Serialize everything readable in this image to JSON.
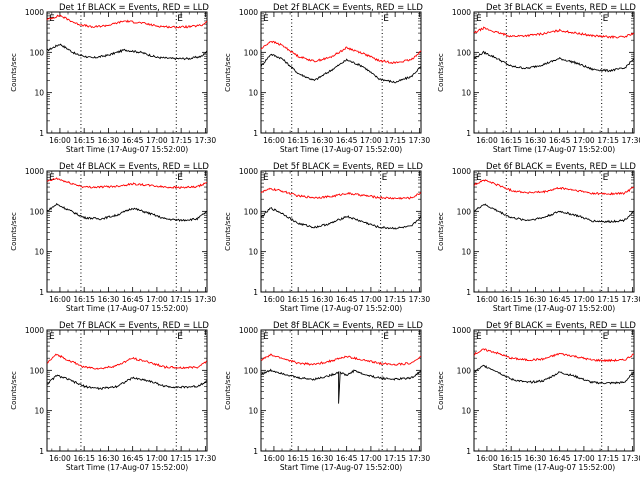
{
  "figure": {
    "ylabel": "Counts/sec",
    "xlabel": "Start Time (17-Aug-07 15:52:00)"
  },
  "chart_data": [
    {
      "type": "line",
      "title": "Det 1f BLACK = Events, RED = LLD",
      "xlabel": "Start Time (17-Aug-07 15:52:00)",
      "ylabel": "Counts/sec",
      "yscale": "log",
      "ylim": [
        1,
        1000
      ],
      "xlim": [
        "15:52",
        "17:31"
      ],
      "x_ticks": [
        "16:00",
        "16:15",
        "16:30",
        "16:45",
        "17:00",
        "17:15",
        "17:30"
      ],
      "y_ticks": [
        "1",
        "10",
        "100",
        "1000"
      ],
      "markers": [
        {
          "x": "16:13",
          "label": ""
        },
        {
          "x": "17:12",
          "label": "E"
        }
      ],
      "corner_label": "E",
      "series": [
        {
          "name": "Events",
          "color": "#000000",
          "x": [
            "15:52",
            "16:00",
            "16:10",
            "16:20",
            "16:30",
            "16:40",
            "16:50",
            "17:00",
            "17:10",
            "17:20",
            "17:28",
            "17:31"
          ],
          "y": [
            110,
            160,
            90,
            72,
            85,
            115,
            100,
            75,
            70,
            70,
            80,
            110
          ]
        },
        {
          "name": "LLD",
          "color": "#ff0000",
          "x": [
            "15:52",
            "16:00",
            "16:10",
            "16:20",
            "16:30",
            "16:40",
            "16:50",
            "17:00",
            "17:10",
            "17:20",
            "17:28",
            "17:31"
          ],
          "y": [
            650,
            820,
            520,
            420,
            470,
            600,
            540,
            450,
            420,
            430,
            470,
            600
          ]
        }
      ]
    },
    {
      "type": "line",
      "title": "Det 2f BLACK = Events, RED = LLD",
      "xlabel": "Start Time (17-Aug-07 15:52:00)",
      "ylabel": "Counts/sec",
      "yscale": "log",
      "ylim": [
        1,
        1000
      ],
      "xlim": [
        "15:52",
        "17:31"
      ],
      "x_ticks": [
        "16:00",
        "16:15",
        "16:30",
        "16:45",
        "17:00",
        "17:15",
        "17:30"
      ],
      "y_ticks": [
        "1",
        "10",
        "100",
        "1000"
      ],
      "markers": [
        {
          "x": "16:11",
          "label": ""
        },
        {
          "x": "17:07",
          "label": "E"
        }
      ],
      "corner_label": "E",
      "series": [
        {
          "name": "Events",
          "color": "#000000",
          "x": [
            "15:52",
            "15:58",
            "16:05",
            "16:15",
            "16:25",
            "16:35",
            "16:45",
            "16:55",
            "17:05",
            "17:15",
            "17:25",
            "17:31"
          ],
          "y": [
            45,
            90,
            70,
            30,
            20,
            35,
            65,
            45,
            22,
            18,
            25,
            45
          ]
        },
        {
          "name": "LLD",
          "color": "#ff0000",
          "x": [
            "15:52",
            "15:58",
            "16:05",
            "16:15",
            "16:25",
            "16:35",
            "16:45",
            "16:55",
            "17:05",
            "17:15",
            "17:25",
            "17:31"
          ],
          "y": [
            120,
            190,
            150,
            80,
            60,
            75,
            130,
            95,
            62,
            55,
            65,
            110
          ]
        }
      ]
    },
    {
      "type": "line",
      "title": "Det 3f BLACK = Events, RED = LLD",
      "xlabel": "Start Time (17-Aug-07 15:52:00)",
      "ylabel": "Counts/sec",
      "yscale": "log",
      "ylim": [
        1,
        1000
      ],
      "xlim": [
        "15:52",
        "17:31"
      ],
      "x_ticks": [
        "16:00",
        "16:15",
        "16:30",
        "16:45",
        "17:00",
        "17:15",
        "17:30"
      ],
      "y_ticks": [
        "1",
        "10",
        "100",
        "1000"
      ],
      "markers": [
        {
          "x": "16:12",
          "label": ""
        },
        {
          "x": "17:11",
          "label": "E"
        }
      ],
      "corner_label": "E",
      "series": [
        {
          "name": "Events",
          "color": "#000000",
          "x": [
            "15:52",
            "15:58",
            "16:05",
            "16:15",
            "16:25",
            "16:35",
            "16:45",
            "16:55",
            "17:05",
            "17:15",
            "17:25",
            "17:31"
          ],
          "y": [
            70,
            100,
            75,
            45,
            40,
            50,
            70,
            55,
            38,
            35,
            40,
            70
          ]
        },
        {
          "name": "LLD",
          "color": "#ff0000",
          "x": [
            "15:52",
            "15:58",
            "16:05",
            "16:15",
            "16:25",
            "16:35",
            "16:45",
            "16:55",
            "17:05",
            "17:15",
            "17:25",
            "17:31"
          ],
          "y": [
            300,
            400,
            320,
            250,
            260,
            290,
            350,
            300,
            260,
            240,
            240,
            300
          ]
        }
      ]
    },
    {
      "type": "line",
      "title": "Det 4f BLACK = Events, RED = LLD",
      "xlabel": "Start Time (17-Aug-07 15:52:00)",
      "ylabel": "Counts/sec",
      "yscale": "log",
      "ylim": [
        1,
        1000
      ],
      "xlim": [
        "15:52",
        "17:31"
      ],
      "x_ticks": [
        "16:00",
        "16:15",
        "16:30",
        "16:45",
        "17:00",
        "17:15",
        "17:30"
      ],
      "y_ticks": [
        "1",
        "10",
        "100",
        "1000"
      ],
      "markers": [
        {
          "x": "16:13",
          "label": ""
        },
        {
          "x": "17:12",
          "label": "E"
        }
      ],
      "corner_label": "E",
      "series": [
        {
          "name": "Events",
          "color": "#000000",
          "x": [
            "15:52",
            "15:58",
            "16:05",
            "16:15",
            "16:25",
            "16:35",
            "16:45",
            "16:55",
            "17:05",
            "17:15",
            "17:25",
            "17:31"
          ],
          "y": [
            100,
            150,
            110,
            70,
            65,
            80,
            120,
            90,
            65,
            60,
            65,
            100
          ]
        },
        {
          "name": "LLD",
          "color": "#ff0000",
          "x": [
            "15:52",
            "15:58",
            "16:05",
            "16:15",
            "16:25",
            "16:35",
            "16:45",
            "16:55",
            "17:05",
            "17:15",
            "17:25",
            "17:31"
          ],
          "y": [
            550,
            650,
            520,
            400,
            400,
            420,
            480,
            440,
            400,
            390,
            400,
            520
          ]
        }
      ]
    },
    {
      "type": "line",
      "title": "Det 5f BLACK = Events, RED = LLD",
      "xlabel": "Start Time (17-Aug-07 15:52:00)",
      "ylabel": "Counts/sec",
      "yscale": "log",
      "ylim": [
        1,
        1000
      ],
      "xlim": [
        "15:52",
        "17:31"
      ],
      "x_ticks": [
        "16:00",
        "16:15",
        "16:30",
        "16:45",
        "17:00",
        "17:15",
        "17:30"
      ],
      "y_ticks": [
        "1",
        "10",
        "100",
        "1000"
      ],
      "markers": [
        {
          "x": "16:11",
          "label": ""
        },
        {
          "x": "17:06",
          "label": "E"
        }
      ],
      "corner_label": "E",
      "series": [
        {
          "name": "Events",
          "color": "#000000",
          "x": [
            "15:52",
            "15:58",
            "16:05",
            "16:15",
            "16:25",
            "16:35",
            "16:45",
            "16:55",
            "17:05",
            "17:15",
            "17:25",
            "17:31"
          ],
          "y": [
            70,
            120,
            90,
            50,
            40,
            50,
            75,
            55,
            40,
            38,
            42,
            75
          ]
        },
        {
          "name": "LLD",
          "color": "#ff0000",
          "x": [
            "15:52",
            "15:58",
            "16:05",
            "16:15",
            "16:25",
            "16:35",
            "16:45",
            "16:55",
            "17:05",
            "17:15",
            "17:25",
            "17:31"
          ],
          "y": [
            300,
            360,
            320,
            240,
            220,
            230,
            280,
            250,
            220,
            210,
            215,
            290
          ]
        }
      ]
    },
    {
      "type": "line",
      "title": "Det 6f BLACK = Events, RED = LLD",
      "xlabel": "Start Time (17-Aug-07 15:52:00)",
      "ylabel": "Counts/sec",
      "yscale": "log",
      "ylim": [
        1,
        1000
      ],
      "xlim": [
        "15:52",
        "17:31"
      ],
      "x_ticks": [
        "16:00",
        "16:15",
        "16:30",
        "16:45",
        "17:00",
        "17:15",
        "17:30"
      ],
      "y_ticks": [
        "1",
        "10",
        "100",
        "1000"
      ],
      "markers": [
        {
          "x": "16:12",
          "label": ""
        },
        {
          "x": "17:11",
          "label": "E"
        }
      ],
      "corner_label": "E",
      "series": [
        {
          "name": "Events",
          "color": "#000000",
          "x": [
            "15:52",
            "15:58",
            "16:05",
            "16:15",
            "16:25",
            "16:35",
            "16:45",
            "16:55",
            "17:05",
            "17:15",
            "17:25",
            "17:31"
          ],
          "y": [
            100,
            150,
            110,
            70,
            60,
            70,
            100,
            80,
            58,
            55,
            60,
            100
          ]
        },
        {
          "name": "LLD",
          "color": "#ff0000",
          "x": [
            "15:52",
            "15:58",
            "16:05",
            "16:15",
            "16:25",
            "16:35",
            "16:45",
            "16:55",
            "17:05",
            "17:15",
            "17:25",
            "17:31"
          ],
          "y": [
            450,
            600,
            480,
            330,
            290,
            300,
            380,
            330,
            280,
            270,
            280,
            400
          ]
        }
      ]
    },
    {
      "type": "line",
      "title": "Det 7f BLACK = Events, RED = LLD",
      "xlabel": "Start Time (17-Aug-07 15:52:00)",
      "ylabel": "Counts/sec",
      "yscale": "log",
      "ylim": [
        1,
        1000
      ],
      "xlim": [
        "15:52",
        "17:31"
      ],
      "x_ticks": [
        "16:00",
        "16:15",
        "16:30",
        "16:45",
        "17:00",
        "17:15",
        "17:30"
      ],
      "y_ticks": [
        "1",
        "10",
        "100",
        "1000"
      ],
      "markers": [
        {
          "x": "16:13",
          "label": ""
        },
        {
          "x": "17:12",
          "label": "E"
        }
      ],
      "corner_label": "E",
      "series": [
        {
          "name": "Events",
          "color": "#000000",
          "x": [
            "15:52",
            "15:58",
            "16:05",
            "16:15",
            "16:25",
            "16:35",
            "16:45",
            "16:55",
            "17:05",
            "17:15",
            "17:25",
            "17:31"
          ],
          "y": [
            45,
            75,
            60,
            40,
            35,
            40,
            65,
            55,
            40,
            38,
            40,
            55
          ]
        },
        {
          "name": "LLD",
          "color": "#ff0000",
          "x": [
            "15:52",
            "15:58",
            "16:05",
            "16:15",
            "16:25",
            "16:35",
            "16:45",
            "16:55",
            "17:05",
            "17:15",
            "17:25",
            "17:31"
          ],
          "y": [
            150,
            250,
            180,
            120,
            110,
            130,
            200,
            160,
            120,
            115,
            120,
            170
          ]
        }
      ]
    },
    {
      "type": "line",
      "title": "Det 8f BLACK = Events, RED = LLD",
      "xlabel": "Start Time (17-Aug-07 15:52:00)",
      "ylabel": "Counts/sec",
      "yscale": "log",
      "ylim": [
        1,
        1000
      ],
      "xlim": [
        "15:52",
        "17:31"
      ],
      "x_ticks": [
        "16:00",
        "16:15",
        "16:30",
        "16:45",
        "17:00",
        "17:15",
        "17:30"
      ],
      "y_ticks": [
        "1",
        "10",
        "100",
        "1000"
      ],
      "markers": [
        {
          "x": "16:11",
          "label": ""
        },
        {
          "x": "17:07",
          "label": "E"
        }
      ],
      "corner_label": "E",
      "series": [
        {
          "name": "Events",
          "color": "#000000",
          "x": [
            "15:52",
            "15:58",
            "16:05",
            "16:15",
            "16:25",
            "16:35",
            "16:40",
            "16:40",
            "16:41",
            "16:45",
            "16:50",
            "16:55",
            "17:05",
            "17:15",
            "17:25",
            "17:31"
          ],
          "y": [
            80,
            100,
            85,
            65,
            60,
            75,
            90,
            15,
            90,
            75,
            100,
            80,
            65,
            60,
            65,
            95
          ]
        },
        {
          "name": "LLD",
          "color": "#ff0000",
          "x": [
            "15:52",
            "15:58",
            "16:05",
            "16:15",
            "16:25",
            "16:35",
            "16:45",
            "16:55",
            "17:05",
            "17:15",
            "17:25",
            "17:31"
          ],
          "y": [
            180,
            240,
            200,
            150,
            140,
            170,
            220,
            180,
            150,
            140,
            150,
            220
          ]
        }
      ]
    },
    {
      "type": "line",
      "title": "Det 9f BLACK = Events, RED = LLD",
      "xlabel": "Start Time (17-Aug-07 15:52:00)",
      "ylabel": "Counts/sec",
      "yscale": "log",
      "ylim": [
        1,
        1000
      ],
      "xlim": [
        "15:52",
        "17:31"
      ],
      "x_ticks": [
        "16:00",
        "16:15",
        "16:30",
        "16:45",
        "17:00",
        "17:15",
        "17:30"
      ],
      "y_ticks": [
        "1",
        "10",
        "100",
        "1000"
      ],
      "markers": [
        {
          "x": "16:12",
          "label": ""
        },
        {
          "x": "17:11",
          "label": "E"
        }
      ],
      "corner_label": "E",
      "series": [
        {
          "name": "Events",
          "color": "#000000",
          "x": [
            "15:52",
            "15:58",
            "16:05",
            "16:15",
            "16:25",
            "16:35",
            "16:45",
            "16:55",
            "17:05",
            "17:15",
            "17:25",
            "17:31"
          ],
          "y": [
            90,
            130,
            100,
            60,
            50,
            55,
            90,
            70,
            50,
            48,
            50,
            90
          ]
        },
        {
          "name": "LLD",
          "color": "#ff0000",
          "x": [
            "15:52",
            "15:58",
            "16:05",
            "16:15",
            "16:25",
            "16:35",
            "16:45",
            "16:55",
            "17:05",
            "17:15",
            "17:25",
            "17:31"
          ],
          "y": [
            250,
            330,
            280,
            200,
            180,
            190,
            260,
            220,
            180,
            175,
            180,
            250
          ]
        }
      ]
    }
  ]
}
